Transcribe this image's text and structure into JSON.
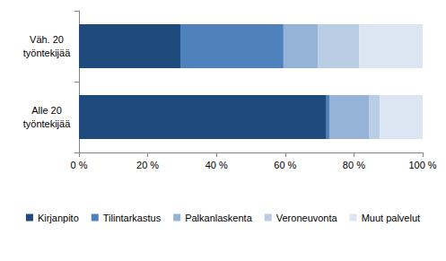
{
  "chart_data": {
    "type": "bar",
    "orientation": "horizontal",
    "stacked": true,
    "grid": false,
    "legend": "bottom",
    "categories": [
      "Väh. 20 työntekijää",
      "Alle 20 työntekijää"
    ],
    "series": [
      {
        "name": "Kirjanpito",
        "color": "#1f4a7e",
        "values": [
          29.5,
          72
        ]
      },
      {
        "name": "Tilintarkastus",
        "color": "#4f81bd",
        "values": [
          30,
          1
        ]
      },
      {
        "name": "Palkanlaskenta",
        "color": "#95b3d7",
        "values": [
          10,
          11.5
        ]
      },
      {
        "name": "Veroneuvonta",
        "color": "#b9cde5",
        "values": [
          12,
          3
        ]
      },
      {
        "name": "Muut palvelut",
        "color": "#dce6f2",
        "values": [
          18.5,
          12.5
        ]
      }
    ],
    "xlim": [
      0,
      100
    ],
    "xticks": [
      {
        "value": 0,
        "label": "0 %"
      },
      {
        "value": 20,
        "label": "20 %"
      },
      {
        "value": 40,
        "label": "40 %"
      },
      {
        "value": 60,
        "label": "60 %"
      },
      {
        "value": 80,
        "label": "80 %"
      },
      {
        "value": 100,
        "label": "100 %"
      }
    ]
  }
}
